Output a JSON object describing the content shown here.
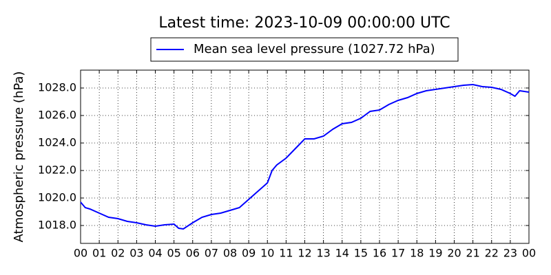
{
  "chart_data": {
    "type": "line",
    "title": "Latest time: 2023-10-09 00:00:00 UTC",
    "y_label": "Atmospheric pressure (hPa)",
    "x": [
      0,
      0.25,
      0.5,
      1,
      1.5,
      2,
      2.5,
      3,
      3.5,
      4,
      4.5,
      5,
      5.25,
      5.5,
      6,
      6.5,
      7,
      7.5,
      8,
      8.5,
      9,
      9.5,
      10,
      10.25,
      10.5,
      11,
      11.5,
      12,
      12.5,
      13,
      13.5,
      14,
      14.5,
      15,
      15.5,
      16,
      16.5,
      17,
      17.5,
      18,
      18.5,
      19,
      19.5,
      20,
      20.5,
      21,
      21.5,
      22,
      22.5,
      23,
      23.25,
      23.5,
      24
    ],
    "series": [
      {
        "name": "Mean sea level pressure (1027.72 hPa)",
        "color": "#0000ff",
        "values": [
          1019.7,
          1019.3,
          1019.2,
          1018.9,
          1018.6,
          1018.5,
          1018.3,
          1018.2,
          1018.05,
          1017.95,
          1018.05,
          1018.1,
          1017.8,
          1017.75,
          1018.2,
          1018.6,
          1018.8,
          1018.9,
          1019.1,
          1019.3,
          1019.9,
          1020.5,
          1021.1,
          1022.0,
          1022.4,
          1022.9,
          1023.6,
          1024.3,
          1024.3,
          1024.5,
          1025.0,
          1025.4,
          1025.5,
          1025.8,
          1026.3,
          1026.4,
          1026.8,
          1027.1,
          1027.3,
          1027.6,
          1027.8,
          1027.9,
          1028.0,
          1028.1,
          1028.2,
          1028.25,
          1028.1,
          1028.05,
          1027.9,
          1027.6,
          1027.4,
          1027.8,
          1027.7
        ]
      }
    ],
    "xlim": [
      0,
      24
    ],
    "xticks": [
      {
        "value": 0,
        "label": "00"
      },
      {
        "value": 1,
        "label": "01"
      },
      {
        "value": 2,
        "label": "02"
      },
      {
        "value": 3,
        "label": "03"
      },
      {
        "value": 4,
        "label": "04"
      },
      {
        "value": 5,
        "label": "05"
      },
      {
        "value": 6,
        "label": "06"
      },
      {
        "value": 7,
        "label": "07"
      },
      {
        "value": 8,
        "label": "08"
      },
      {
        "value": 9,
        "label": "09"
      },
      {
        "value": 10,
        "label": "10"
      },
      {
        "value": 11,
        "label": "11"
      },
      {
        "value": 12,
        "label": "12"
      },
      {
        "value": 13,
        "label": "13"
      },
      {
        "value": 14,
        "label": "14"
      },
      {
        "value": 15,
        "label": "15"
      },
      {
        "value": 16,
        "label": "16"
      },
      {
        "value": 17,
        "label": "17"
      },
      {
        "value": 18,
        "label": "18"
      },
      {
        "value": 19,
        "label": "19"
      },
      {
        "value": 20,
        "label": "20"
      },
      {
        "value": 21,
        "label": "21"
      },
      {
        "value": 22,
        "label": "22"
      },
      {
        "value": 23,
        "label": "23"
      },
      {
        "value": 24,
        "label": "00"
      }
    ],
    "ylim": [
      1016.7,
      1029.3
    ],
    "yticks": [
      {
        "value": 1018,
        "label": "1018.0"
      },
      {
        "value": 1020,
        "label": "1020.0"
      },
      {
        "value": 1022,
        "label": "1022.0"
      },
      {
        "value": 1024,
        "label": "1024.0"
      },
      {
        "value": 1026,
        "label": "1026.0"
      },
      {
        "value": 1028,
        "label": "1028.0"
      }
    ],
    "grid": true,
    "legend": "top"
  }
}
